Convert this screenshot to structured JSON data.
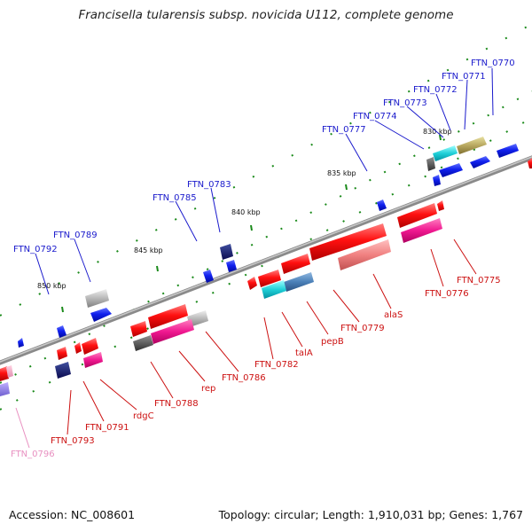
{
  "title": "Francisella tularensis subsp. novicida U112, complete genome",
  "footer": {
    "accession": "Accession: NC_008601",
    "summary": "Topology: circular; Length: 1,910,031 bp; Genes: 1,767"
  },
  "ticks": [
    "830 kbp",
    "835 kbp",
    "840 kbp",
    "845 kbp",
    "850 kbp"
  ],
  "labels_top": [
    "FTN_0770",
    "FTN_0771",
    "FTN_0772",
    "FTN_0773",
    "FTN_0774",
    "FTN_0777",
    "FTN_0783",
    "FTN_0785",
    "FTN_0789",
    "FTN_0792"
  ],
  "labels_bottom": [
    "FTN_0775",
    "FTN_0776",
    "alaS",
    "FTN_0779",
    "pepB",
    "talA",
    "FTN_0782",
    "FTN_0786",
    "rep",
    "FTN_0788",
    "rdgC",
    "FTN_0791",
    "FTN_0793",
    "FTN_0796"
  ],
  "colors": {
    "forward_label": "#1a1acc",
    "reverse_label": "#cc1111",
    "pseudo_label": "#e88fc0",
    "backbone": "#808080"
  }
}
